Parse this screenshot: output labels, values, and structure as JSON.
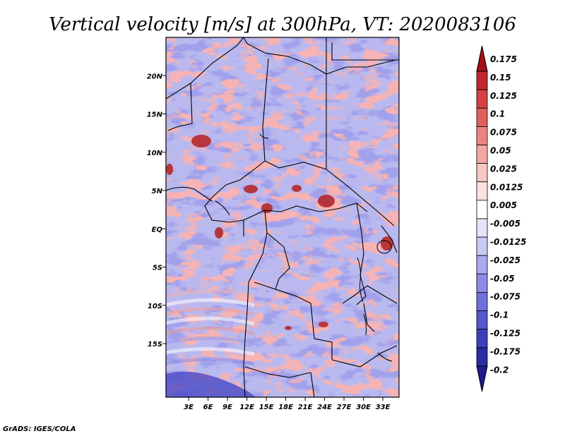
{
  "chart_data": {
    "type": "heatmap",
    "title": "Vertical velocity [m/s] at 300hPa, VT: 2020083106",
    "xlabel": "",
    "ylabel": "",
    "x_range": [
      -0.5,
      35.5
    ],
    "y_range": [
      -22,
      25
    ],
    "x_ticks": [
      "3E",
      "6E",
      "9E",
      "12E",
      "15E",
      "18E",
      "21E",
      "24E",
      "27E",
      "30E",
      "33E"
    ],
    "x_tick_values": [
      3,
      6,
      9,
      12,
      15,
      18,
      21,
      24,
      27,
      30,
      33
    ],
    "y_ticks": [
      "20N",
      "15N",
      "10N",
      "5N",
      "EQ",
      "5S",
      "10S",
      "15S"
    ],
    "y_tick_values": [
      20,
      15,
      10,
      5,
      0,
      -5,
      -10,
      -15
    ],
    "colorbar": {
      "labels": [
        "0.175",
        "0.15",
        "0.125",
        "0.1",
        "0.075",
        "0.05",
        "0.025",
        "0.0125",
        "0.005",
        "-0.005",
        "-0.0125",
        "-0.025",
        "-0.05",
        "-0.075",
        "-0.1",
        "-0.125",
        "-0.175",
        "-0.2"
      ],
      "colors": [
        "#a50f15",
        "#c0262b",
        "#d44042",
        "#e2605c",
        "#ec8580",
        "#f3a8a3",
        "#f8c8c5",
        "#fbe2e0",
        "#ffffff",
        "#e4e4fb",
        "#c9c9f4",
        "#a9a9ee",
        "#8c8ce6",
        "#7070dd",
        "#5656cf",
        "#3e3ebd",
        "#2b2ba6",
        "#1c1c8c"
      ]
    },
    "units": "m/s"
  },
  "credit": "GrADS: IGES/COLA"
}
